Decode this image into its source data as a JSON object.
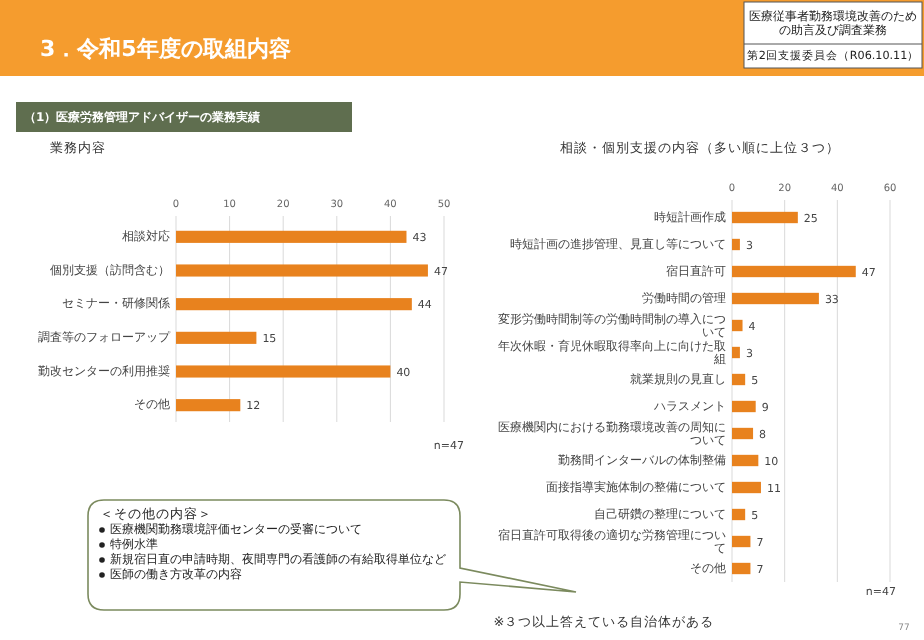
{
  "chart_data": [
    {
      "type": "other",
      "title": "3．令和5年度の取組内容",
      "subtitle": "（1）医療労務管理アドバイザーの業務実績",
      "annotations": [
        "医療従事者勤務環境改善のための助言及び調査業務",
        "第2回支援委員会（R06.10.11）",
        "77"
      ]
    },
    {
      "type": "bar",
      "orientation": "horizontal",
      "title": "業務内容",
      "categories": [
        "相談対応",
        "個別支援（訪問含む）",
        "セミナー・研修関係",
        "調査等のフォローアップ",
        "勤改センターの利用推奨",
        "その他"
      ],
      "values": [
        43,
        47,
        44,
        15,
        40,
        12
      ],
      "color": "#e8821e",
      "xlim": [
        0,
        50
      ],
      "xticks": [
        0,
        10,
        20,
        30,
        40,
        50
      ],
      "grid": "x",
      "data_labels": true,
      "annotations": [
        "n=47"
      ]
    },
    {
      "type": "bar",
      "orientation": "horizontal",
      "title": "相談・個別支援の内容（多い順に上位３つ）",
      "categories": [
        "時短計画作成",
        "時短計画の進捗管理、見直し等について",
        "宿日直許可",
        "労働時間の管理",
        "変形労働時間制等の労働時間制の導入について",
        "年次休暇・育児休暇取得率向上に向けた取組",
        "就業規則の見直し",
        "ハラスメント",
        "医療機関内における勤務環境改善の周知について",
        "勤務間インターバルの体制整備",
        "面接指導実施体制の整備について",
        "自己研鑽の整理について",
        "宿日直許可取得後の適切な労務管理について",
        "その他"
      ],
      "values": [
        25,
        3,
        47,
        33,
        4,
        3,
        5,
        9,
        8,
        10,
        11,
        5,
        7,
        7
      ],
      "color": "#e8821e",
      "xlim": [
        0,
        60
      ],
      "xticks": [
        0,
        20,
        40,
        60
      ],
      "grid": "x",
      "data_labels": true,
      "annotations": [
        "n=47",
        "※３つ以上答えている自治体がある",
        "＜その他の内容＞",
        "医療機関勤務環境評価センターの受審について",
        "特例水準",
        "新規宿日直の申請時期、夜間専門の看護師の有給取得単位など",
        "医師の働き方改革の内容"
      ]
    }
  ]
}
